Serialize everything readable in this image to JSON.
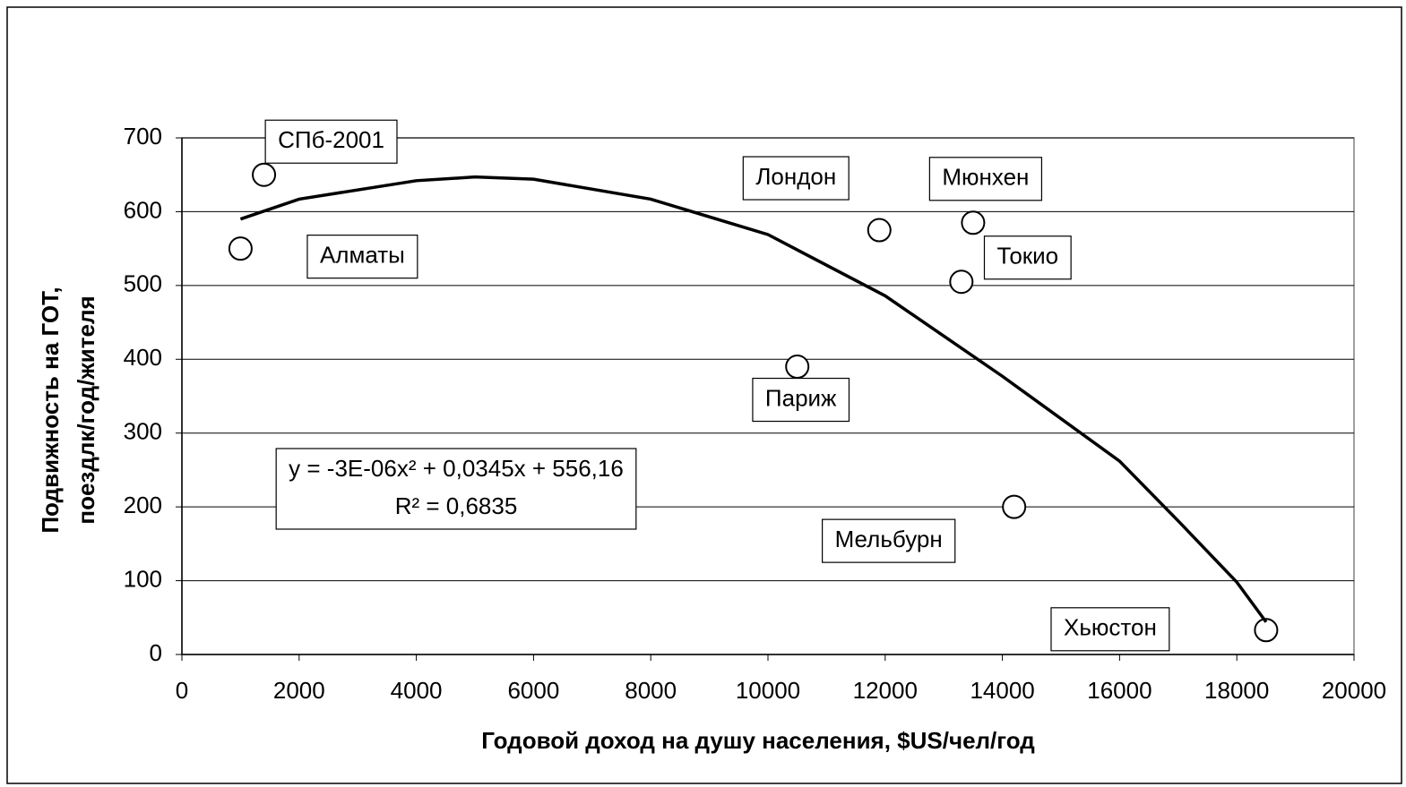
{
  "chart_data": {
    "type": "scatter",
    "x_label": "Годовой доход на душу населения, $US/чел/год",
    "y_label": [
      "Подвижность на ГОТ,",
      "поездлк/год/жителя"
    ],
    "xlim": [
      0,
      20000
    ],
    "xticks": [
      0,
      2000,
      4000,
      6000,
      8000,
      10000,
      12000,
      14000,
      16000,
      18000,
      20000
    ],
    "ylim": [
      0,
      700
    ],
    "yticks": [
      0,
      100,
      200,
      300,
      400,
      500,
      600,
      700
    ],
    "grid": true,
    "series": [
      {
        "color": "#000000",
        "marker": "circle",
        "x": [
          1400,
          1000,
          11900,
          13500,
          13300,
          10500,
          14200,
          18500
        ],
        "values": [
          650,
          550,
          575,
          585,
          505,
          390,
          200,
          33
        ],
        "point_labels": [
          "СПб-2001",
          "Алматы",
          "Лондон",
          "Мюнхен",
          "Токио",
          "Париж",
          "Мельбурн",
          "Хьюстон"
        ]
      },
      {
        "type": "line",
        "color": "#000000",
        "x": [
          1000,
          2000,
          4000,
          5000,
          6000,
          8000,
          10000,
          12000,
          14000,
          16000,
          17000,
          18000,
          18500
        ],
        "values": [
          590,
          617,
          642,
          647,
          644,
          617,
          569,
          486,
          377,
          262,
          181,
          98,
          44
        ]
      }
    ],
    "equation": [
      "y = -3E-06x² + 0,0345x + 556,16",
      "R² = 0,6835"
    ]
  }
}
